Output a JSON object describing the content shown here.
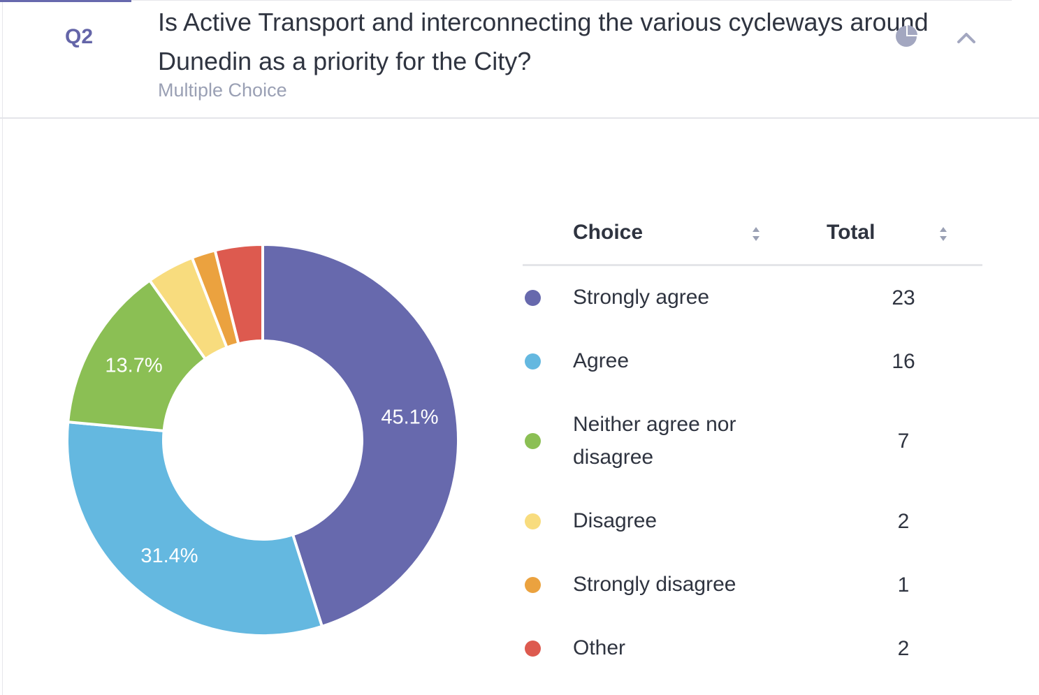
{
  "question": {
    "number": "Q2",
    "title": "Is Active Transport and interconnecting the various cycleways around Dunedin as a priority for the City?",
    "type": "Multiple Choice"
  },
  "icons": {
    "chart_toggle": "pie-chart-icon",
    "collapse": "chevron-up-icon",
    "sort": "sort-icon"
  },
  "table": {
    "choice_header": "Choice",
    "total_header": "Total"
  },
  "chart_data": {
    "type": "pie",
    "style": "donut",
    "categories": [
      "Strongly agree",
      "Agree",
      "Neither agree nor disagree",
      "Disagree",
      "Strongly disagree",
      "Other"
    ],
    "values": [
      23,
      16,
      7,
      2,
      1,
      2
    ],
    "colors": [
      "#6769ad",
      "#64b8e0",
      "#8bbf54",
      "#f8dc7e",
      "#eba23f",
      "#dd5a4f"
    ],
    "labels": [
      "45.1%",
      "31.4%",
      "13.7%",
      "",
      "",
      ""
    ]
  }
}
